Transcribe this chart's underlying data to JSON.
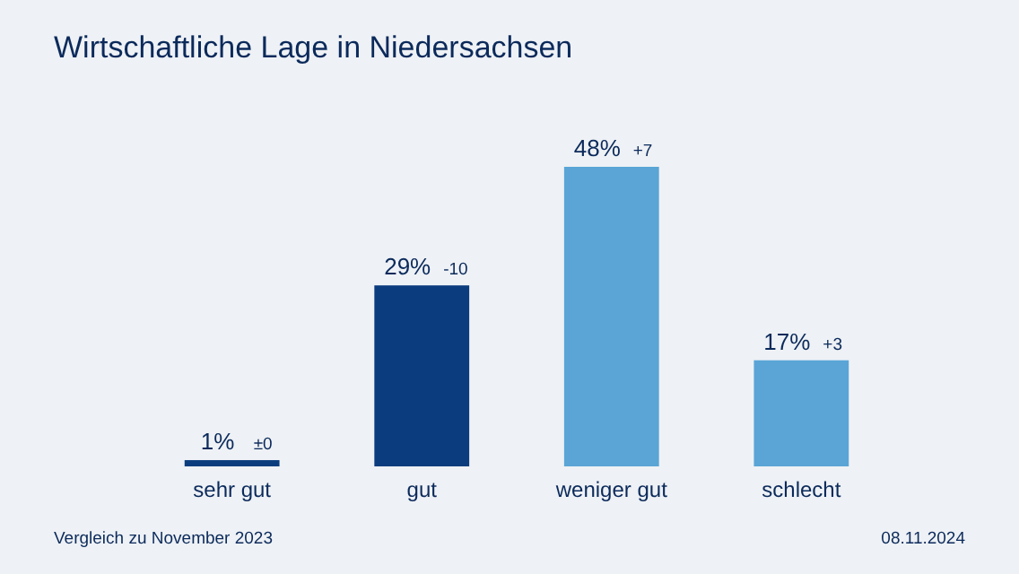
{
  "chart_data": {
    "type": "bar",
    "title": "Wirtschaftliche Lage in Niedersachsen",
    "categories": [
      "sehr gut",
      "gut",
      "weniger gut",
      "schlecht"
    ],
    "values": [
      1,
      29,
      48,
      17
    ],
    "colors": [
      "#0b3d7e",
      "#0b3d7e",
      "#5aa5d6",
      "#5aa5d6"
    ],
    "value_labels": [
      "1%",
      "29%",
      "48%",
      "17%"
    ],
    "annotations": [
      {
        "text": "±0",
        "x": "sehr gut",
        "y": 1
      },
      {
        "text": "-10",
        "x": "gut",
        "y": 29
      },
      {
        "text": "+7",
        "x": "weniger gut",
        "y": 48
      },
      {
        "text": "+3",
        "x": "schlecht",
        "y": 17
      },
      "Vergleich zu November 2023",
      "08.11.2024"
    ],
    "orientation": "vertical"
  }
}
